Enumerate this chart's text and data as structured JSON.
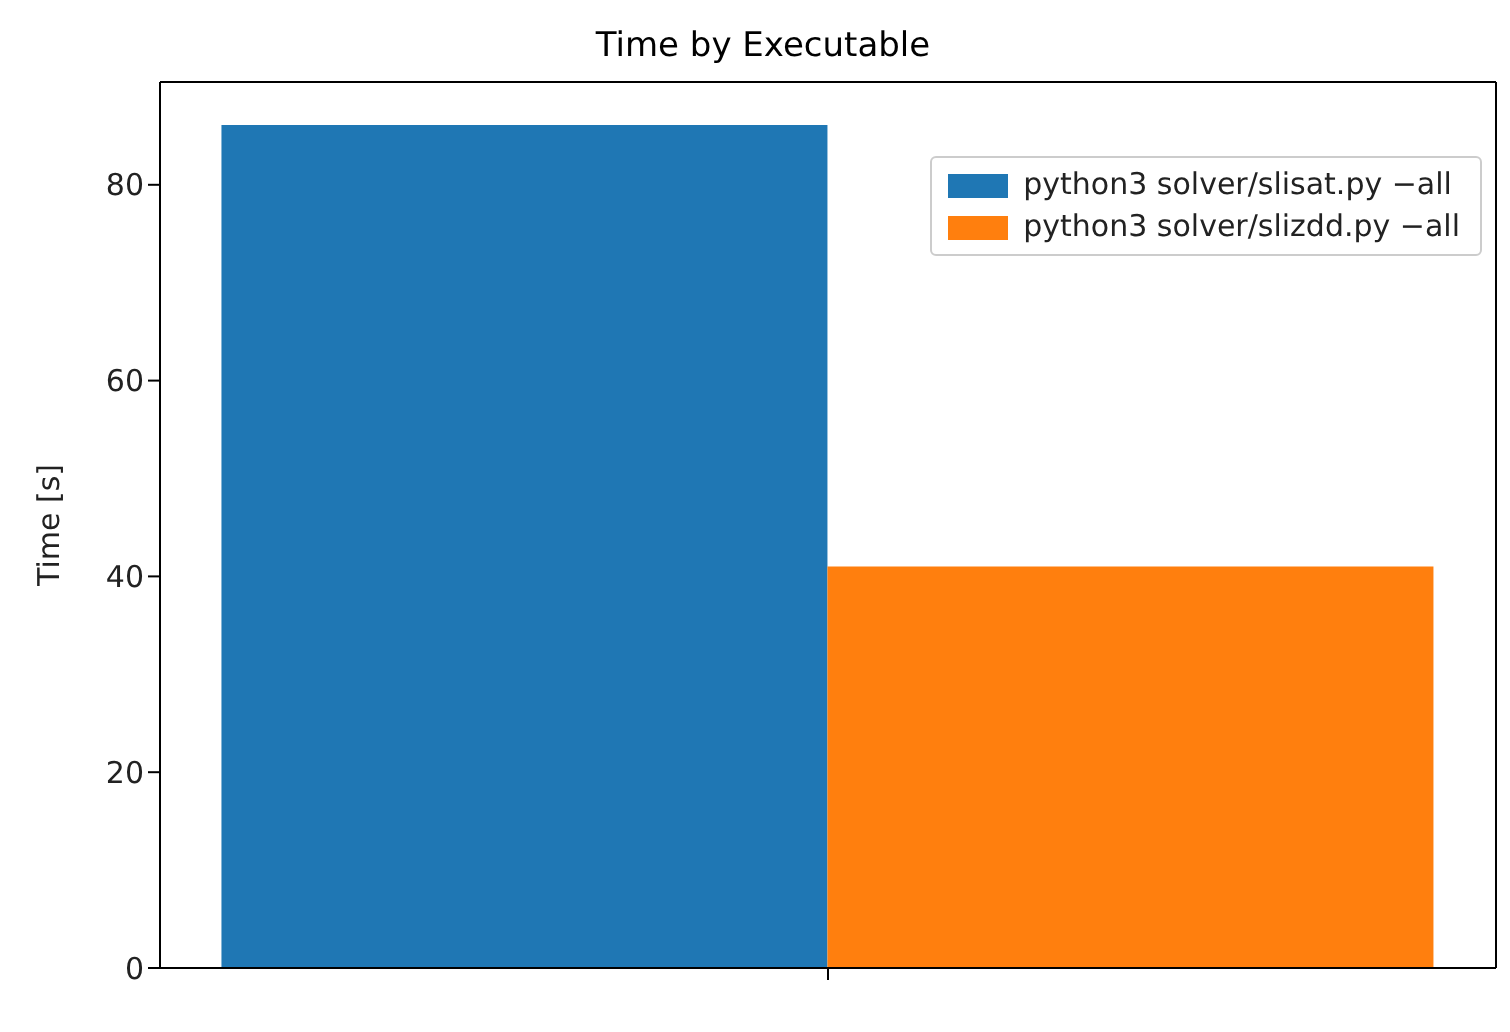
{
  "chart_data": {
    "type": "bar",
    "title": "Time by Executable",
    "ylabel": "Time [s]",
    "categories": [
      null
    ],
    "series": [
      {
        "name": "python3 solver/slisat.py −all",
        "color": "#1f77b4",
        "values": [
          86.1
        ]
      },
      {
        "name": "python3 solver/slizdd.py −all",
        "color": "#ff7f0e",
        "values": [
          41
        ]
      }
    ],
    "ylim": [
      0,
      90.5
    ],
    "yticks": [
      0,
      20,
      40,
      60,
      80
    ],
    "grid": false,
    "legend": "top right",
    "tick_labels": "y"
  }
}
